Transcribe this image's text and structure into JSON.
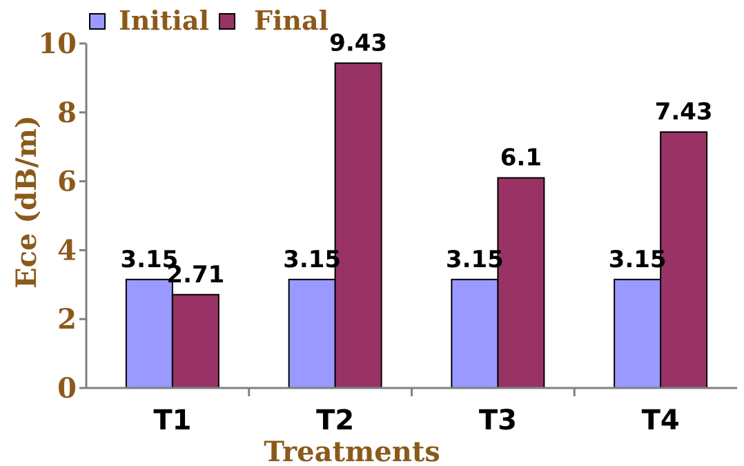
{
  "chart_data": {
    "type": "bar",
    "categories": [
      "T1",
      "T2",
      "T3",
      "T4"
    ],
    "series": [
      {
        "name": "Initial",
        "values": [
          3.15,
          3.15,
          3.15,
          3.15
        ],
        "labels": [
          "3.15",
          "3.15",
          "3.15",
          "3.15"
        ],
        "color": "#9999ff"
      },
      {
        "name": "Final",
        "values": [
          2.71,
          9.43,
          6.1,
          7.43
        ],
        "labels": [
          "2.71",
          "9.43",
          "6.1",
          "7.43"
        ],
        "color": "#993366"
      }
    ],
    "xlabel": "Treatments",
    "ylabel": "Ece (dB/m)",
    "ylim": [
      0,
      10
    ],
    "yticks": [
      0,
      2,
      4,
      6,
      8,
      10
    ],
    "grid": false,
    "legend_position": "top-left",
    "colors": {
      "text": "#8b5a1a",
      "axis": "#808080",
      "bar_outline": "#000000"
    }
  }
}
